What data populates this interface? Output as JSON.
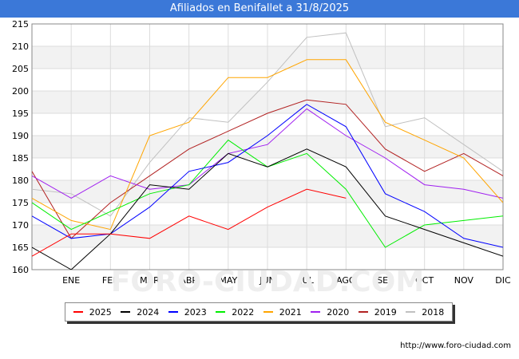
{
  "title": "Afiliados en Benifallet a 31/8/2025",
  "footer_url": "http://www.foro-ciudad.com",
  "watermark": "FORO-CIUDAD.COM",
  "chart_data": {
    "type": "line",
    "title": "Afiliados en Benifallet a 31/8/2025",
    "categories": [
      "",
      "ENE",
      "FEB",
      "MAR",
      "ABR",
      "MAY",
      "JUN",
      "JUL",
      "AGO",
      "SEP",
      "OCT",
      "NOV",
      "DIC"
    ],
    "ylim": [
      160,
      215
    ],
    "yticks": [
      160,
      165,
      170,
      175,
      180,
      185,
      190,
      195,
      200,
      205,
      210,
      215
    ],
    "grid": true,
    "legend_position": "bottom",
    "series": [
      {
        "name": "2025",
        "color": "#ff0000",
        "values": [
          163,
          168,
          168,
          167,
          172,
          169,
          174,
          178,
          176,
          null,
          null,
          null,
          null
        ]
      },
      {
        "name": "2024",
        "color": "#000000",
        "values": [
          165,
          160,
          168,
          179,
          178,
          186,
          183,
          187,
          183,
          172,
          169,
          166,
          163
        ]
      },
      {
        "name": "2023",
        "color": "#0000ff",
        "values": [
          172,
          167,
          168,
          174,
          182,
          184,
          190,
          197,
          192,
          177,
          173,
          167,
          165
        ]
      },
      {
        "name": "2022",
        "color": "#00ee00",
        "values": [
          175,
          169,
          173,
          177,
          179,
          189,
          183,
          186,
          178,
          165,
          170,
          171,
          172
        ]
      },
      {
        "name": "2021",
        "color": "#ffa500",
        "values": [
          176,
          171,
          169,
          190,
          193,
          203,
          203,
          207,
          207,
          193,
          189,
          185,
          175
        ]
      },
      {
        "name": "2020",
        "color": "#a020f0",
        "values": [
          181,
          176,
          181,
          178,
          179,
          186,
          188,
          196,
          190,
          185,
          179,
          178,
          176
        ]
      },
      {
        "name": "2019",
        "color": "#b22222",
        "values": [
          182,
          167,
          175,
          181,
          187,
          191,
          195,
          198,
          197,
          187,
          182,
          186,
          181
        ]
      },
      {
        "name": "2018",
        "color": "#c0c0c0",
        "values": [
          178,
          177,
          172,
          184,
          194,
          193,
          202,
          212,
          213,
          192,
          194,
          188,
          182
        ]
      }
    ]
  }
}
